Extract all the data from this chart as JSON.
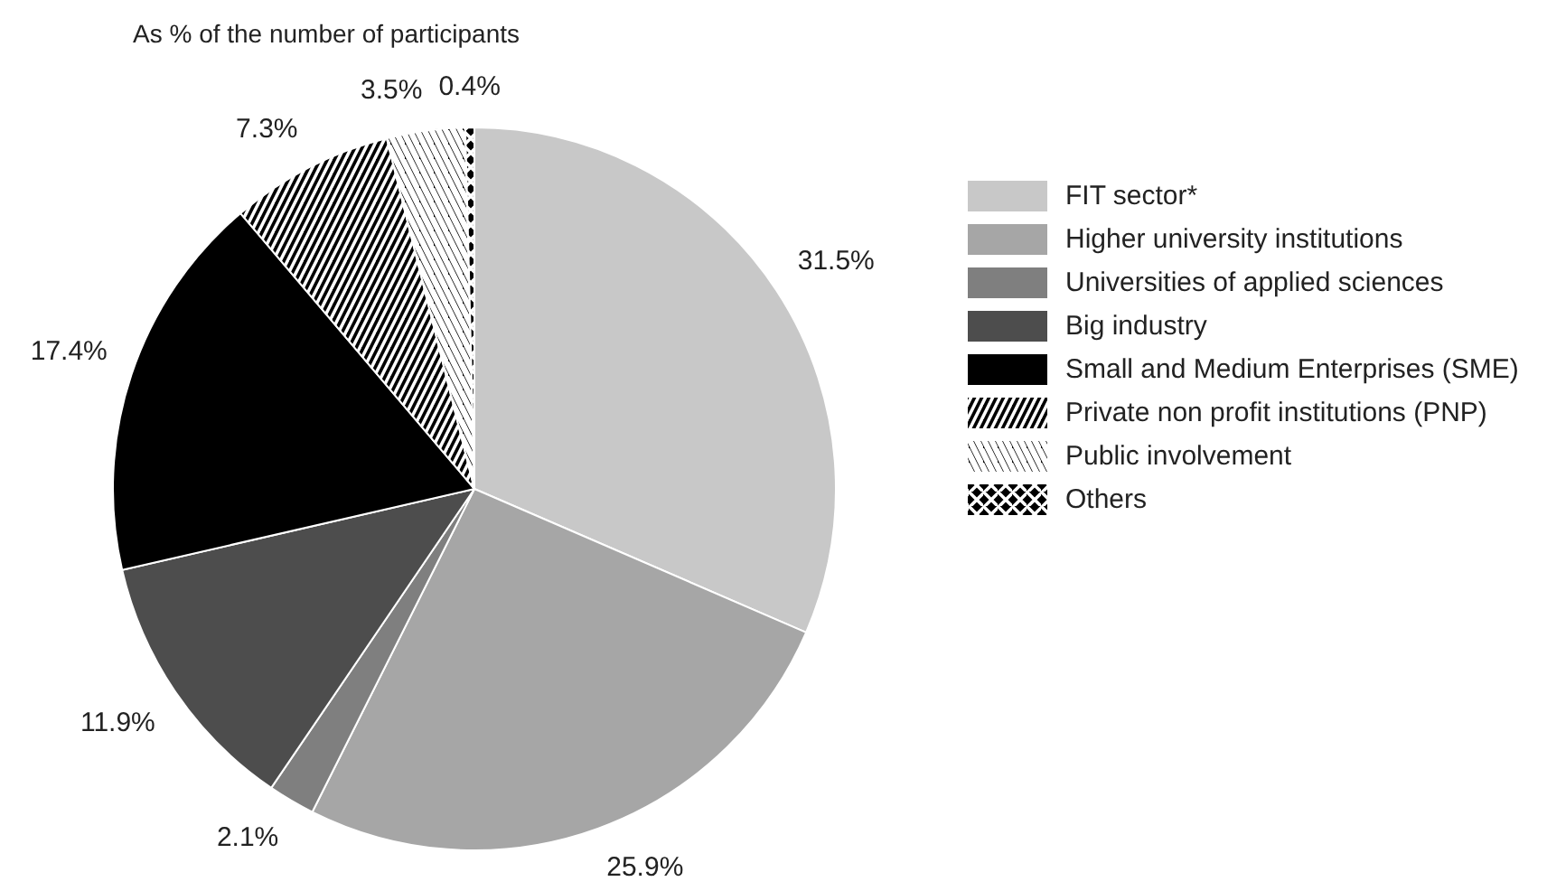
{
  "chart_data": {
    "type": "pie",
    "title": "As % of the number of participants",
    "categories": [
      "FIT sector*",
      "Higher university institutions",
      "Universities of applied sciences",
      "Big industry",
      "Small and Medium Enterprises (SME)",
      "Private non profit institutions (PNP)",
      "Public involvement",
      "Others"
    ],
    "values": [
      31.5,
      25.9,
      2.1,
      11.9,
      17.4,
      7.3,
      3.5,
      0.4
    ],
    "colors": [
      "#c8c8c8",
      "#a6a6a6",
      "#7f7f7f",
      "#4d4d4d",
      "#000000",
      "#000000",
      "#000000",
      "#000000"
    ],
    "value_labels": [
      "31.5%",
      "25.9%",
      "2.1%",
      "11.9%",
      "17.4%",
      "7.3%",
      "3.5%",
      "0.4%"
    ],
    "data_labels": true,
    "legend": "right"
  }
}
